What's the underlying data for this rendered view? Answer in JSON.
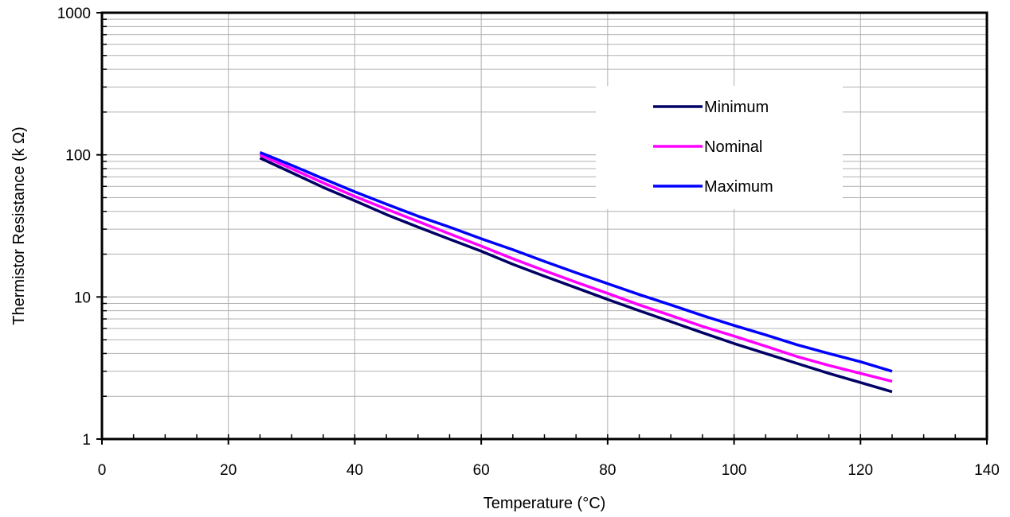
{
  "chart_data": {
    "type": "line",
    "xlabel": "Temperature (°C)",
    "ylabel": "Thermistor Resistance (k Ω)",
    "xlim": [
      0,
      140
    ],
    "ylim": [
      1,
      1000
    ],
    "y_scale": "log",
    "grid": true,
    "legend_position": "upper-right",
    "x_ticks": [
      "0",
      "20",
      "40",
      "60",
      "80",
      "100",
      "120",
      "140"
    ],
    "y_ticks": [
      "1",
      "10",
      "100",
      "1000"
    ],
    "x": [
      25,
      30,
      35,
      40,
      45,
      50,
      55,
      60,
      65,
      70,
      75,
      80,
      85,
      90,
      95,
      100,
      105,
      110,
      115,
      120,
      125
    ],
    "series": [
      {
        "name": "Minimum",
        "color": "#000066",
        "values": [
          95,
          75,
          59,
          47.5,
          38,
          31,
          25.5,
          21,
          17,
          14,
          11.6,
          9.6,
          8.0,
          6.7,
          5.6,
          4.7,
          4.0,
          3.4,
          2.9,
          2.5,
          2.15
        ]
      },
      {
        "name": "Nominal",
        "color": "#ff00ff",
        "values": [
          100,
          80,
          63.5,
          51,
          41.5,
          34,
          27.8,
          22.8,
          18.6,
          15.3,
          12.7,
          10.6,
          8.8,
          7.4,
          6.2,
          5.3,
          4.5,
          3.8,
          3.3,
          2.9,
          2.55
        ]
      },
      {
        "name": "Maximum",
        "color": "#0000ff",
        "values": [
          104,
          84.5,
          68,
          55,
          45,
          37,
          31,
          25.7,
          21.5,
          17.8,
          14.8,
          12.4,
          10.4,
          8.8,
          7.4,
          6.3,
          5.4,
          4.6,
          4.0,
          3.5,
          3.0
        ]
      }
    ]
  }
}
